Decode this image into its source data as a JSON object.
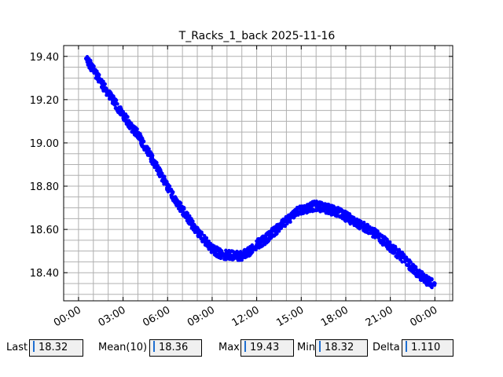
{
  "chart_data": {
    "type": "scatter",
    "title": "T_Racks_1_back 2025-11-16",
    "xlabel": "",
    "ylabel": "",
    "x_tick_labels": [
      "00:00",
      "03:00",
      "06:00",
      "09:00",
      "12:00",
      "15:00",
      "18:00",
      "21:00",
      "00:00"
    ],
    "x_tick_hours": [
      0,
      3,
      6,
      9,
      12,
      15,
      18,
      21,
      24
    ],
    "y_tick_labels": [
      "18.40",
      "18.60",
      "18.80",
      "19.00",
      "19.20",
      "19.40"
    ],
    "y_tick_values": [
      18.4,
      18.6,
      18.8,
      19.0,
      19.2,
      19.4
    ],
    "xlim_hours": [
      -1.0,
      25.2
    ],
    "ylim": [
      18.27,
      19.45
    ],
    "grid": true,
    "marker_color": "#0000ff",
    "series": [
      {
        "x_hours": [
          0.5,
          1.0,
          1.5,
          2.0,
          2.5,
          3.0,
          3.5,
          4.0,
          4.5,
          5.0,
          5.5,
          6.0,
          6.5,
          7.0,
          7.5,
          8.0,
          8.5,
          9.0,
          9.5,
          10.0,
          10.5,
          11.0,
          11.5,
          12.0,
          12.5,
          13.0,
          13.5,
          14.0,
          14.5,
          15.0,
          15.5,
          16.0,
          16.5,
          17.0,
          17.5,
          18.0,
          18.5,
          19.0,
          19.5,
          20.0,
          20.5,
          21.0,
          21.5,
          22.0,
          22.5,
          23.0,
          23.5,
          24.0
        ],
        "values": [
          19.39,
          19.34,
          19.28,
          19.23,
          19.18,
          19.13,
          19.08,
          19.04,
          18.98,
          18.92,
          18.86,
          18.8,
          18.74,
          18.69,
          18.64,
          18.59,
          18.55,
          18.51,
          18.49,
          18.48,
          18.48,
          18.48,
          18.5,
          18.53,
          18.55,
          18.58,
          18.61,
          18.64,
          18.67,
          18.69,
          18.7,
          18.71,
          18.7,
          18.69,
          18.68,
          18.66,
          18.64,
          18.62,
          18.6,
          18.58,
          18.55,
          18.52,
          18.49,
          18.46,
          18.42,
          18.39,
          18.36,
          18.35
        ]
      }
    ]
  },
  "stats": {
    "last_label": "Last",
    "last_value": "18.32",
    "mean_label": "Mean(10)",
    "mean_value": "18.36",
    "max_label": "Max",
    "max_value": "19.43",
    "min_label": "Min",
    "min_value": "18.32",
    "delta_label": "Delta",
    "delta_value": "1.110"
  }
}
